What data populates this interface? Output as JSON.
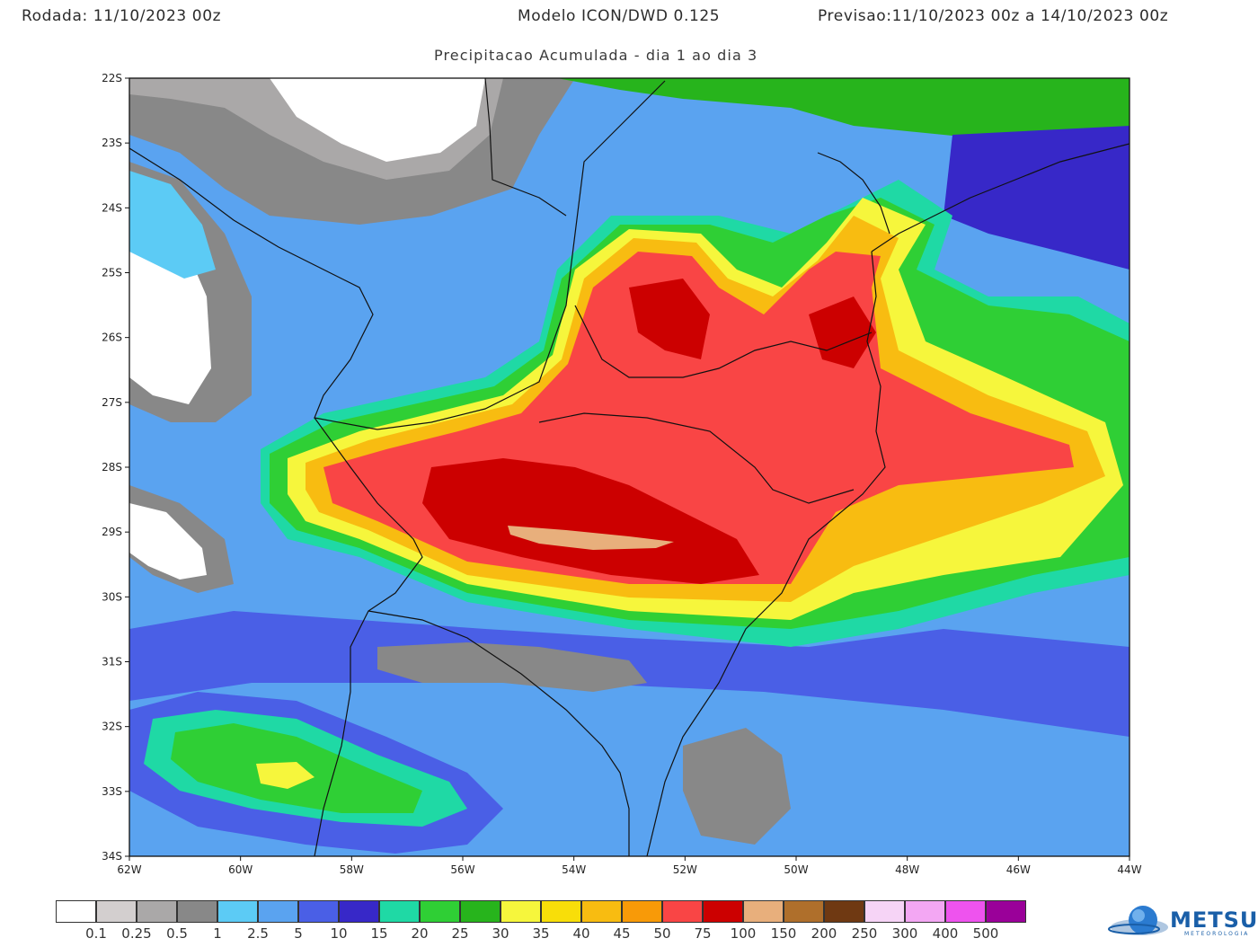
{
  "header": {
    "left": "Rodada: 11/10/2023 00z",
    "center": "Modelo ICON/DWD 0.125",
    "right": "Previsao:11/10/2023 00z a 14/10/2023 00z"
  },
  "subtitle": "Precipitacao Acumulada - dia 1 ao dia 3",
  "map": {
    "lat_labels": [
      "22S",
      "23S",
      "24S",
      "25S",
      "26S",
      "27S",
      "28S",
      "29S",
      "30S",
      "31S",
      "32S",
      "33S",
      "34S"
    ],
    "lon_labels": [
      "62W",
      "60W",
      "58W",
      "56W",
      "54W",
      "52W",
      "50W",
      "48W",
      "46W",
      "44W"
    ],
    "lon_range": [
      -62,
      -44
    ],
    "lat_range": [
      -34,
      -22
    ]
  },
  "legend": {
    "levels": [
      "0.1",
      "0.25",
      "0.5",
      "1",
      "2.5",
      "5",
      "10",
      "15",
      "20",
      "25",
      "30",
      "35",
      "40",
      "45",
      "50",
      "75",
      "100",
      "150",
      "200",
      "250",
      "300",
      "400",
      "500"
    ],
    "colors": [
      "#ffffff",
      "#d3cfcf",
      "#aaa8a8",
      "#888888",
      "#5ccbf5",
      "#5aa3f0",
      "#4a5fe6",
      "#3728c8",
      "#1fd9a5",
      "#2fcf35",
      "#27b41c",
      "#f6f63c",
      "#f8de09",
      "#f8bc11",
      "#f89a08",
      "#f94545",
      "#cc0000",
      "#e8af7c",
      "#af6f2b",
      "#6f3912",
      "#f6d4f6",
      "#f3a7f3",
      "#ee53ee",
      "#9a0099"
    ]
  },
  "logo": {
    "name": "METSUL",
    "sub": "METEOROLOGIA"
  }
}
